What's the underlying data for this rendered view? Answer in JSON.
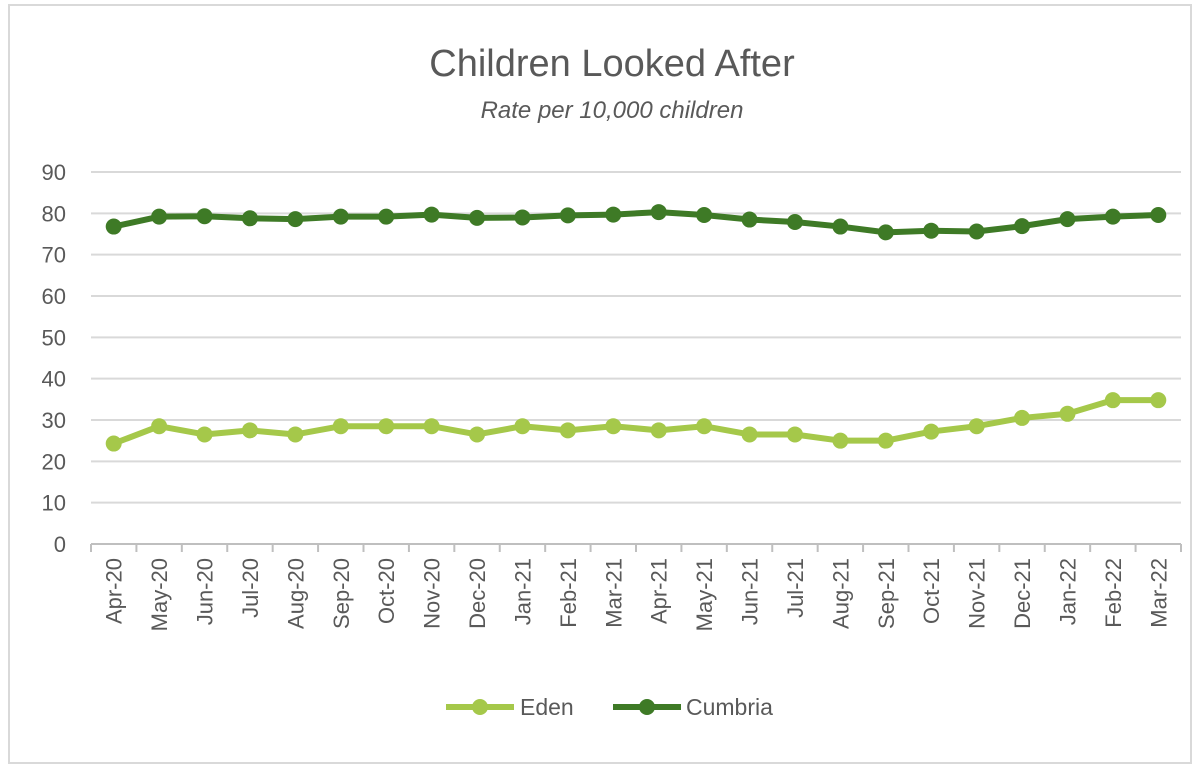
{
  "chart_data": {
    "type": "line",
    "title": "Children Looked After",
    "subtitle": "Rate per 10,000 children",
    "xlabel": "",
    "ylabel": "",
    "ylim": [
      0,
      90
    ],
    "yticks": [
      0,
      10,
      20,
      30,
      40,
      50,
      60,
      70,
      80,
      90
    ],
    "grid": true,
    "legend_position": "bottom",
    "categories": [
      "Apr-20",
      "May-20",
      "Jun-20",
      "Jul-20",
      "Aug-20",
      "Sep-20",
      "Oct-20",
      "Nov-20",
      "Dec-20",
      "Jan-21",
      "Feb-21",
      "Mar-21",
      "Apr-21",
      "May-21",
      "Jun-21",
      "Jul-21",
      "Aug-21",
      "Sep-21",
      "Oct-21",
      "Nov-21",
      "Dec-21",
      "Jan-22",
      "Feb-22",
      "Mar-22"
    ],
    "series": [
      {
        "name": "Eden",
        "color": "#a5c84a",
        "values": [
          24.3,
          28.5,
          26.5,
          27.5,
          26.5,
          28.5,
          28.5,
          28.5,
          26.5,
          28.5,
          27.5,
          28.5,
          27.5,
          28.5,
          26.5,
          26.5,
          25.0,
          25.0,
          27.2,
          28.5,
          30.5,
          31.5,
          34.8,
          34.8
        ]
      },
      {
        "name": "Cumbria",
        "color": "#3e7a26",
        "values": [
          76.8,
          79.2,
          79.3,
          78.8,
          78.6,
          79.2,
          79.2,
          79.7,
          78.9,
          79.0,
          79.5,
          79.7,
          80.3,
          79.6,
          78.5,
          77.9,
          76.8,
          75.4,
          75.8,
          75.6,
          76.9,
          78.6,
          79.2,
          79.6
        ]
      }
    ]
  }
}
